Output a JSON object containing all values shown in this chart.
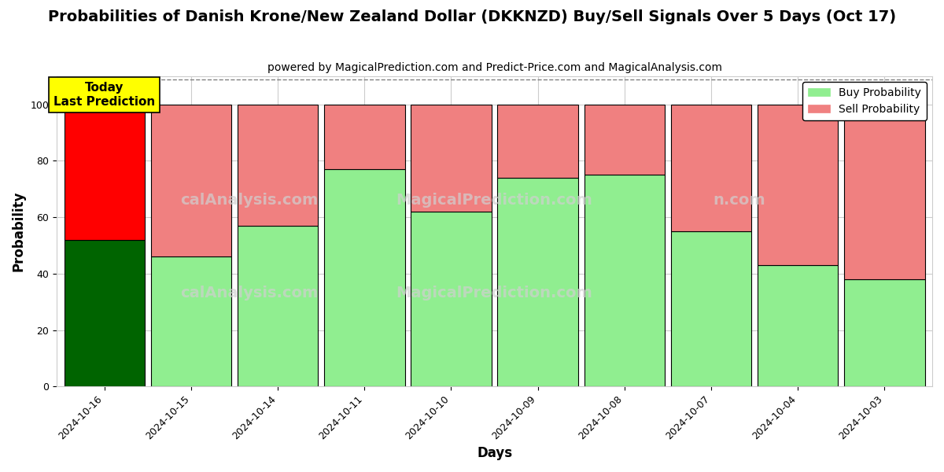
{
  "title": "Probabilities of Danish Krone/New Zealand Dollar (DKKNZD) Buy/Sell Signals Over 5 Days (Oct 17)",
  "subtitle": "powered by MagicalPrediction.com and Predict-Price.com and MagicalAnalysis.com",
  "xlabel": "Days",
  "ylabel": "Probability",
  "categories": [
    "2024-10-16",
    "2024-10-15",
    "2024-10-14",
    "2024-10-11",
    "2024-10-10",
    "2024-10-09",
    "2024-10-08",
    "2024-10-07",
    "2024-10-04",
    "2024-10-03"
  ],
  "buy_values": [
    52,
    46,
    57,
    77,
    62,
    74,
    75,
    55,
    43,
    38
  ],
  "sell_values": [
    48,
    54,
    43,
    23,
    38,
    26,
    25,
    45,
    57,
    62
  ],
  "today_buy_color": "#006400",
  "today_sell_color": "#FF0000",
  "other_buy_color": "#90EE90",
  "other_sell_color": "#F08080",
  "today_label": "Today\nLast Prediction",
  "legend_buy_label": "Buy Probability",
  "legend_sell_label": "Sell Probability",
  "ylim": [
    0,
    110
  ],
  "yticks": [
    0,
    20,
    40,
    60,
    80,
    100
  ],
  "dashed_line_y": 109,
  "bar_edge_color": "#000000",
  "bar_linewidth": 0.8,
  "background_color": "#ffffff",
  "grid_color": "#cccccc",
  "title_fontsize": 14,
  "subtitle_fontsize": 10,
  "axis_label_fontsize": 12,
  "tick_fontsize": 9,
  "legend_fontsize": 10,
  "today_annotation_fontsize": 11,
  "today_annotation_bg": "#FFFF00",
  "watermark_color": "#d0d0d0",
  "watermark1": "MagicalAnalysis.com",
  "watermark2": "MagicalPrediction.com",
  "watermark3": "calAnalysis.com",
  "watermark4": "MagicalPrediction.com"
}
